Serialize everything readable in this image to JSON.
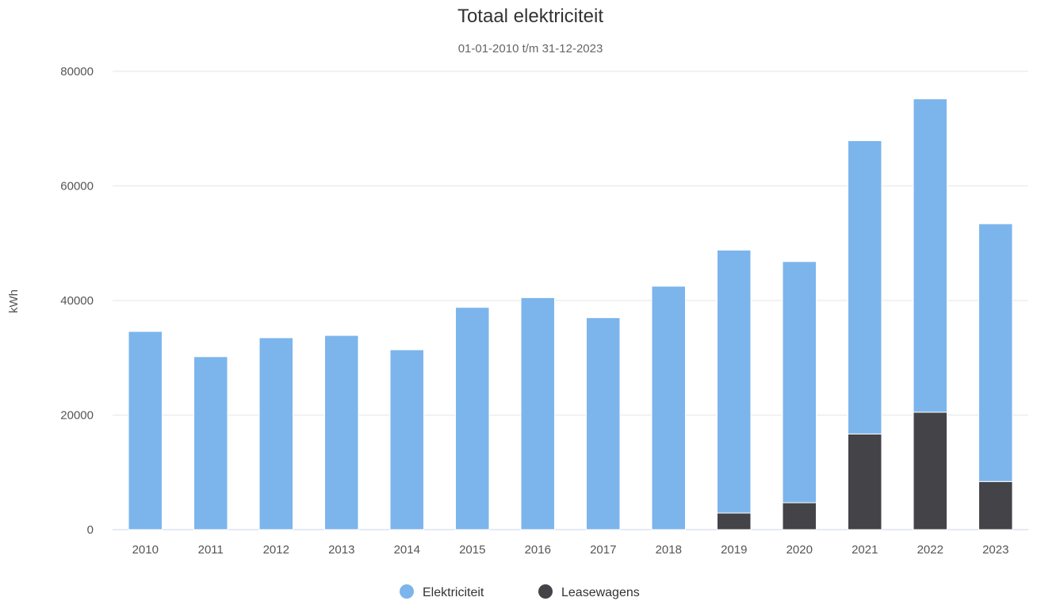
{
  "chart_data": {
    "type": "bar",
    "stacked": true,
    "title": "Totaal elektriciteit",
    "subtitle": "01-01-2010 t/m 31-12-2023",
    "xlabel": "",
    "ylabel": "kWh",
    "ylim": [
      0,
      80000
    ],
    "yticks": [
      "0",
      "20000",
      "40000",
      "60000",
      "80000"
    ],
    "grid": true,
    "legend_position": "bottom-center",
    "categories": [
      "2010",
      "2011",
      "2012",
      "2013",
      "2014",
      "2015",
      "2016",
      "2017",
      "2018",
      "2019",
      "2020",
      "2021",
      "2022",
      "2023"
    ],
    "series": [
      {
        "name": "Elektriciteit",
        "color": "#7cb5ec",
        "values": [
          34600,
          30200,
          33500,
          33900,
          31400,
          38800,
          40500,
          37000,
          42500,
          45900,
          42100,
          51200,
          54700,
          45000
        ]
      },
      {
        "name": "Leasewagens",
        "color": "#434348",
        "values": [
          0,
          0,
          0,
          0,
          0,
          0,
          0,
          0,
          0,
          2900,
          4700,
          16700,
          20500,
          8400
        ]
      }
    ]
  }
}
